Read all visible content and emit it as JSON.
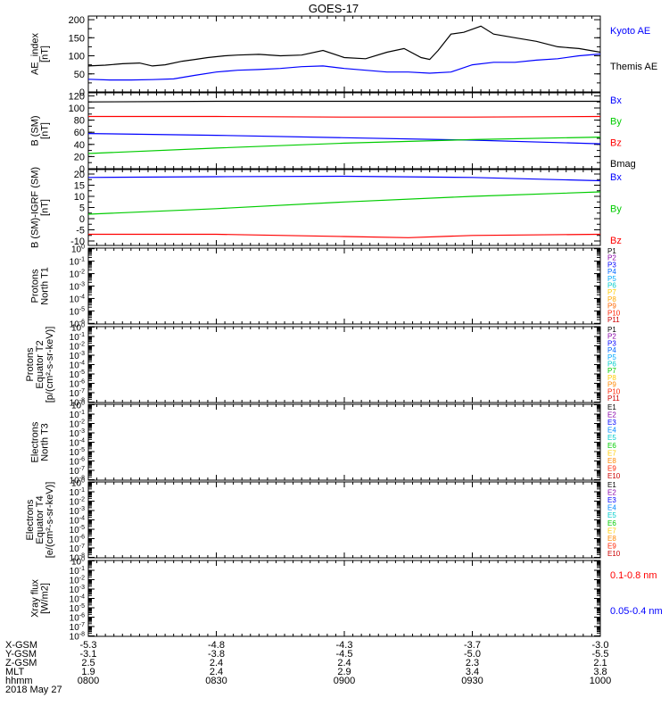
{
  "title": "GOES-17",
  "chart_data": [
    {
      "type": "line",
      "ylabel": [
        "AE_index",
        "[nT]"
      ],
      "yticks": [
        0,
        50,
        100,
        150,
        200
      ],
      "ylim": [
        0,
        210
      ],
      "legend": [
        {
          "label": "Kyoto AE",
          "color": "#0000ff"
        },
        {
          "label": "Themis AE",
          "color": "#000000"
        }
      ],
      "series": [
        {
          "name": "Kyoto AE",
          "color": "#0000ff",
          "x": [
            0,
            5,
            10,
            15,
            20,
            25,
            30,
            35,
            40,
            45,
            50,
            55,
            60,
            65,
            70,
            75,
            80,
            85,
            90,
            95,
            100,
            105,
            110,
            115,
            120
          ],
          "y": [
            35,
            33,
            33,
            34,
            36,
            46,
            55,
            60,
            62,
            65,
            70,
            72,
            65,
            60,
            55,
            55,
            52,
            55,
            75,
            82,
            82,
            88,
            92,
            100,
            105
          ]
        },
        {
          "name": "Themis AE",
          "color": "#000000",
          "x": [
            0,
            4,
            8,
            12,
            15,
            18,
            22,
            25,
            28,
            32,
            35,
            40,
            45,
            50,
            55,
            60,
            65,
            70,
            74,
            78,
            80,
            82,
            85,
            88,
            92,
            95,
            100,
            105,
            110,
            115,
            120
          ],
          "y": [
            72,
            74,
            78,
            80,
            72,
            75,
            85,
            90,
            95,
            100,
            102,
            104,
            100,
            102,
            115,
            95,
            92,
            110,
            120,
            95,
            90,
            115,
            160,
            165,
            182,
            160,
            150,
            140,
            125,
            120,
            110
          ]
        }
      ]
    },
    {
      "type": "line",
      "ylabel": [
        "B (SM)",
        "[nT]"
      ],
      "yticks": [
        0,
        20,
        40,
        60,
        80,
        100,
        120
      ],
      "ylim": [
        0,
        125
      ],
      "legend": [
        {
          "label": "Bx",
          "color": "#0000ff"
        },
        {
          "label": "By",
          "color": "#00cc00"
        },
        {
          "label": "Bz",
          "color": "#ff0000"
        },
        {
          "label": "Bmag",
          "color": "#000000"
        }
      ],
      "series": [
        {
          "name": "Bmag",
          "color": "#000000",
          "x": [
            0,
            30,
            60,
            90,
            120
          ],
          "y": [
            110,
            111,
            111,
            111,
            111
          ]
        },
        {
          "name": "Bz",
          "color": "#ff0000",
          "x": [
            0,
            30,
            60,
            90,
            120
          ],
          "y": [
            86,
            86,
            85,
            85,
            86
          ]
        },
        {
          "name": "Bx",
          "color": "#0000ff",
          "x": [
            0,
            30,
            60,
            90,
            120
          ],
          "y": [
            58,
            55,
            51,
            47,
            41
          ]
        },
        {
          "name": "By",
          "color": "#00cc00",
          "x": [
            0,
            30,
            60,
            90,
            120
          ],
          "y": [
            25,
            34,
            42,
            48,
            52
          ]
        }
      ]
    },
    {
      "type": "line",
      "ylabel": [
        "B (SM)-IGRF (SM)",
        "[nT]"
      ],
      "yticks": [
        -10,
        -5,
        0,
        5,
        10,
        15,
        20
      ],
      "ylim": [
        -12,
        22
      ],
      "legend": [
        {
          "label": "Bx",
          "color": "#0000ff"
        },
        {
          "label": "By",
          "color": "#00cc00"
        },
        {
          "label": "Bz",
          "color": "#ff0000"
        }
      ],
      "series": [
        {
          "name": "Bx",
          "color": "#0000ff",
          "x": [
            0,
            30,
            60,
            90,
            120
          ],
          "y": [
            18.5,
            18.8,
            19,
            18.5,
            17
          ]
        },
        {
          "name": "By",
          "color": "#00cc00",
          "x": [
            0,
            30,
            60,
            90,
            120
          ],
          "y": [
            2,
            4.5,
            7.5,
            10,
            12
          ]
        },
        {
          "name": "Bz",
          "color": "#ff0000",
          "x": [
            0,
            30,
            60,
            75,
            90,
            120
          ],
          "y": [
            -7,
            -7,
            -8,
            -8.5,
            -7.5,
            -7
          ]
        }
      ]
    },
    {
      "type": "line",
      "ylabel": [
        "Protons",
        "North T1"
      ],
      "log_scale": true,
      "ytick_exponents": [
        0,
        -1,
        -2,
        -3,
        -4,
        -5,
        -6
      ],
      "channels": [
        "P1",
        "P2",
        "P3",
        "P4",
        "P5",
        "P6",
        "P7",
        "P8",
        "P9",
        "P10",
        "P11"
      ],
      "channel_colors": [
        "#000000",
        "#8800aa",
        "#0000ff",
        "#0066ff",
        "#00aaff",
        "#00cccc",
        "#ffcc00",
        "#ffaa00",
        "#ff6600",
        "#ff2200",
        "#cc0000"
      ],
      "series": []
    },
    {
      "type": "line",
      "ylabel": [
        "Protons",
        "Equator T2",
        "[p/(cm²-s-sr-keV)]"
      ],
      "log_scale": true,
      "ytick_exponents": [
        0,
        -1,
        -2,
        -3,
        -4,
        -5,
        -6,
        -7,
        -8
      ],
      "channels": [
        "P1",
        "P2",
        "P3",
        "P4",
        "P5",
        "P6",
        "P7",
        "P8",
        "P9",
        "P10",
        "P11"
      ],
      "channel_colors": [
        "#000000",
        "#8800aa",
        "#0000ff",
        "#0066ff",
        "#00aaff",
        "#00cccc",
        "#00cc00",
        "#ffcc00",
        "#ff8800",
        "#ff2200",
        "#cc0000"
      ],
      "series": []
    },
    {
      "type": "line",
      "ylabel": [
        "Electrons",
        "North T3"
      ],
      "log_scale": true,
      "ytick_exponents": [
        0,
        -1,
        -2,
        -3,
        -4,
        -5,
        -6,
        -7,
        -8
      ],
      "channels": [
        "E1",
        "E2",
        "E3",
        "E4",
        "E5",
        "E6",
        "E7",
        "E8",
        "E9",
        "E10"
      ],
      "channel_colors": [
        "#000000",
        "#8800aa",
        "#0000ff",
        "#0088ff",
        "#00cccc",
        "#00cc00",
        "#ffcc00",
        "#ff8800",
        "#ff2200",
        "#cc0000"
      ],
      "series": []
    },
    {
      "type": "line",
      "ylabel": [
        "Electrons",
        "Equator T4",
        "[e/(cm²-s-sr-keV)]"
      ],
      "log_scale": true,
      "ytick_exponents": [
        0,
        -1,
        -2,
        -3,
        -4,
        -5,
        -6,
        -7,
        -8
      ],
      "channels": [
        "E1",
        "E2",
        "E3",
        "E4",
        "E5",
        "E6",
        "E7",
        "E8",
        "E9",
        "E10"
      ],
      "channel_colors": [
        "#000000",
        "#8800aa",
        "#0000ff",
        "#0088ff",
        "#00cccc",
        "#00cc00",
        "#ffcc00",
        "#ff8800",
        "#ff2200",
        "#cc0000"
      ],
      "series": []
    },
    {
      "type": "line",
      "ylabel": [
        "Xray flux",
        "[W/m2]"
      ],
      "log_scale": true,
      "ytick_exponents": [
        0,
        -1,
        -2,
        -3,
        -4,
        -5,
        -6,
        -7,
        -8
      ],
      "legend": [
        {
          "label": "0.1-0.8 nm",
          "color": "#ff0000"
        },
        {
          "label": "0.05-0.4 nm",
          "color": "#0000ff"
        }
      ],
      "series": []
    }
  ],
  "x_axis": {
    "xlim": [
      0,
      120
    ],
    "tick_positions": [
      0,
      30,
      60,
      90,
      120
    ],
    "rows": [
      {
        "label": "X-GSM",
        "values": [
          "-5.3",
          "-4.8",
          "-4.3",
          "-3.7",
          "-3.0"
        ]
      },
      {
        "label": "Y-GSM",
        "values": [
          "-3.1",
          "-3.8",
          "-4.5",
          "-5.0",
          "-5.5"
        ]
      },
      {
        "label": "Z-GSM",
        "values": [
          "2.5",
          "2.4",
          "2.4",
          "2.3",
          "2.1"
        ]
      },
      {
        "label": "MLT",
        "values": [
          "1.9",
          "2.4",
          "2.9",
          "3.4",
          "3.8"
        ]
      },
      {
        "label": "hhmm",
        "values": [
          "0800",
          "0830",
          "0900",
          "0930",
          "1000"
        ]
      }
    ]
  },
  "date": "2018 May 27"
}
